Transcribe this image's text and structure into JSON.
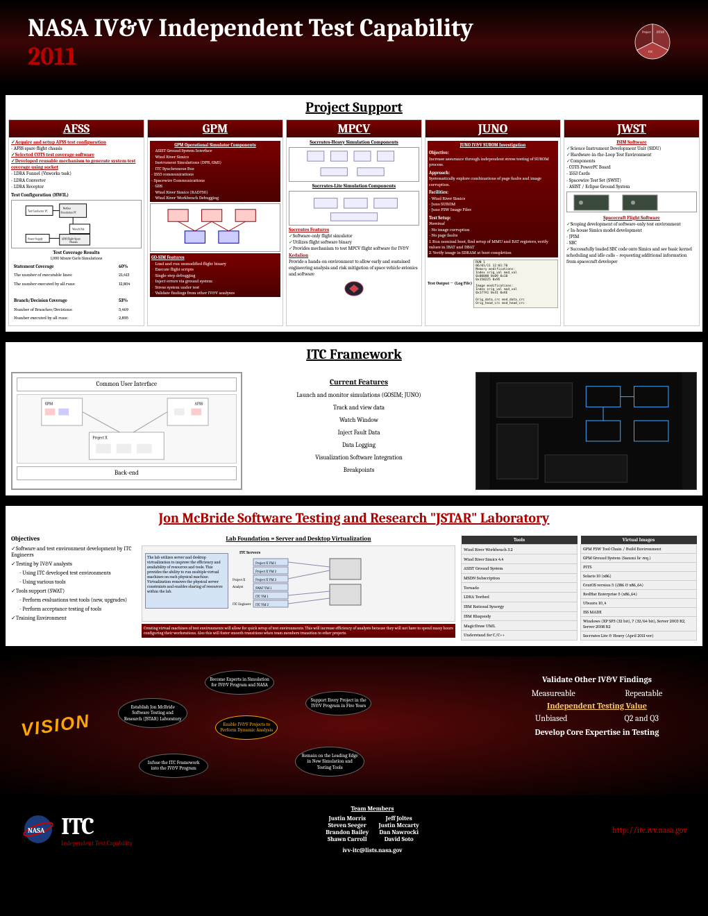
{
  "header": {
    "title": "NASA IV&V Independent Test Capability",
    "year": "2011",
    "logo_labels": [
      "Project Support",
      "JSTAR Lab",
      "ITC Framework"
    ]
  },
  "sections": {
    "project_support": "Project Support",
    "itc_framework": "ITC Framework",
    "jstar": "Jon McBride Software Testing and Research \"JSTAR\" Laboratory"
  },
  "projects": {
    "afss": {
      "name": "AFSS",
      "items": [
        "Acquire and setup AFSS test configuration",
        "- AFSS spare flight chassis",
        "Selected COTS test coverage software",
        "Developed reusable mechanism to generate system test coverage using socket",
        "- LDRA Funnel (Vxworks task)",
        "- LDRA Converter",
        "- LDRA Receptor"
      ],
      "config_title": "Test Configuration (HWIL)",
      "cov_title": "Test Coverage Results",
      "cov_sub": "1,000 Monte Carlo Simulations",
      "cov": [
        [
          "Statement Coverage",
          "60%"
        ],
        [
          "The number of executable lines:",
          "21,413"
        ],
        [
          "The number executed by all runs:",
          "12,804"
        ],
        [
          "",
          ""
        ],
        [
          "Branch/Decision Coverage",
          "53%"
        ],
        [
          "Number of Branches/Decisions:",
          "5,469"
        ],
        [
          "Number executed by all runs:",
          "2,895"
        ]
      ]
    },
    "gpm": {
      "name": "GPM",
      "title": "GPM Operational Simulator Components",
      "items": [
        "ASIST Ground System Interface",
        "Wind River Simics",
        "Instrument Simulations (DPR, GMI)",
        "ITC Synchronous Bus",
        "- 1553 communications",
        "- Spacewire Communications",
        "GDS",
        "Wind River Simics (RAD750)",
        "Wind River Workbench Debugging"
      ],
      "gosim": "GO-SIM Features",
      "gosim_items": [
        "Load and run unmodified flight binary",
        "Execute flight scripts",
        "Single-step debugging",
        "Inject errors via ground system",
        "Stress system under test",
        "Validate findings from other IV&V analyses"
      ]
    },
    "mpcv": {
      "name": "MPCV",
      "title": "Socrrates-Heavy Simulation Components",
      "lite": "Socrrates-Lite Simulation Components",
      "feat_title": "Socrrates Features",
      "feat": [
        "Software-only flight simulator",
        "Utilizes flight software binary",
        "Provides mechanism to test MPCV flight software for IV&V"
      ],
      "ked_title": "Kedalion",
      "ked": "Provide a hands-on environment to allow early and sustained engineering analysis and risk mitigation of space vehicle avionics and software"
    },
    "juno": {
      "name": "JUNO",
      "title": "JUNO IV&V SUROM Investigation",
      "obj_t": "Objective:",
      "obj": "Increase assurance through independent stress testing of SUROM process.",
      "app_t": "Approach:",
      "app": "Systematically explore combinations of page faults and image corruption.",
      "fac_t": "Facilities:",
      "fac": [
        "- Wind River Simics",
        "- Juno SUROM",
        "- Juno FSW Image Files"
      ],
      "test_t": "Test Setup:",
      "test_sub": "Nominal",
      "test": [
        "- No image corruption",
        "- No page faults",
        "1. Run nominal boot, find setup of MMU and BAT registers, verify values in IBAT and DBAT",
        "2. Verify image in SDRAM at boot completion"
      ],
      "out": "Test Output → (Log File)"
    },
    "jwst": {
      "name": "JWST",
      "isim_t": "ISIM Software",
      "isim": [
        "Science Instrument Development Unit (SIDU)",
        "Hardware-in-the-Loop Test Environment",
        "Components",
        "- COTS PowerPC Board",
        "- 1553 Cards",
        "- Spacewire Test Set (SWST)",
        "- ASIST / Eclipse Ground System"
      ],
      "sfs_t": "Spacecraft Flight Software",
      "sfs": [
        "Scoping development of software-only test environment",
        "In-house Simics model development",
        "- JPIM",
        "- SBC",
        "Successfully loaded SBC code onto Simics and see basic kernel scheduling and idle calls – requesting additional information from spacecraft developer"
      ]
    }
  },
  "itc": {
    "cui": "Common User Interface",
    "backend": "Back-end",
    "feat_title": "Current Features",
    "features": [
      "Launch and monitor simulations (GOSIM; JUNO)",
      "Track and view data",
      "Watch Window",
      "Inject Fault Data",
      "Data Logging",
      "Visualization Software Integration",
      "Breakpoints"
    ]
  },
  "jstar": {
    "obj_title": "Objectives",
    "objectives": [
      "✓Software and test environment development by ITC Engineers",
      "✓Testing by IV&V analysts",
      "  - Using ITC developed test environments",
      "  - Using various tools",
      "✓Tools support (SWAT)",
      "  - Perform evaluations test tools (new, upgrades)",
      "  - Perform acceptance testing of tools",
      "✓Training Environment"
    ],
    "mid_title": "Lab Foundation = Server and Desktop Virtualization",
    "mid_text": "The lab utilizes server and desktop virtualization to improve the efficiency and availability of resources and tools. This provides the ability to run multiple virtual machines on each physical machine. Virtualization removes the physical server constraints and enables sharing of resources within the lab.",
    "mid_note": "Creating virtual machines of test environments will allow for quick setup of test environments. This will increase efficiency of analysts because they will not have to spend many hours configuring their workstations. Also this will foster smooth transitions when team members transition to other projects.",
    "tools_h": "Tools",
    "images_h": "Virtual Images",
    "tools": [
      "Wind River Workbench 3.2",
      "Wind River Simics 4.4",
      "ASIST Ground System",
      "MSDN Subscription",
      "Tornado",
      "LDRA Testbed",
      "IBM Rational Synergy",
      "IBM Rhapsody",
      "MagicDraw UML",
      "Understand for C/C++"
    ],
    "images": [
      "GPM FSW Tool Chain / Build Environment",
      "GPM Ground System (Sammi lic req.)",
      "PITS",
      "Solaris 10 (x86)",
      "CentOS version 5 (i386 & x86_64)",
      "RedHat Enterprise 5 (x86_64)",
      "Ubuntu 10_4",
      "ISS MADE",
      "Windows (XP SP3 (32 bit), 7 (32/64 bit), Server 2003 R2, Server 2008 R2",
      "Socrrates Lite & Heavy (April 2011 ver)"
    ]
  },
  "vision": {
    "label": "VISION",
    "bubbles": {
      "b1": "Establish Jon McBride Software Testing and Research (JSTAR) Laboratory",
      "b2": "Become Experts in Simulation for IV&V Program and NASA",
      "b3": "Support Every Project in the IV&V Program in Five Years",
      "center": "Enable IV&V Projects to Perform Dynamic Analysis",
      "b4": "Infuse the ITC Framework into the IV&V Program",
      "b5": "Remain on the Leading Edge in New Simulation and Testing Tools"
    },
    "right": {
      "t1": "Validate Other IV&V Findings",
      "c1a": "Measureable",
      "c1b": "Repeatable",
      "link": "Independent Testing Value",
      "c2a": "Unbiased",
      "c2b": "Q2 and Q3",
      "t2": "Develop Core Expertise in Testing"
    }
  },
  "footer": {
    "itc": "ITC",
    "itc_sub": "Independent Test Capability",
    "team_title": "Team Members",
    "team": [
      "Justin Morris",
      "Jeff Joltes",
      "Steven Seeger",
      "Justin Mccarty",
      "Brandon Bailey",
      "Dan Nawrocki",
      "Shawn Carroll",
      "David Soto"
    ],
    "email": "ivv-itc@lists.nasa.gov",
    "url": "http://itc.ivv.nasa.gov"
  },
  "colors": {
    "bg": "#000000",
    "red": "#7a0000",
    "accent": "#b00000",
    "orange": "#ffa500"
  }
}
